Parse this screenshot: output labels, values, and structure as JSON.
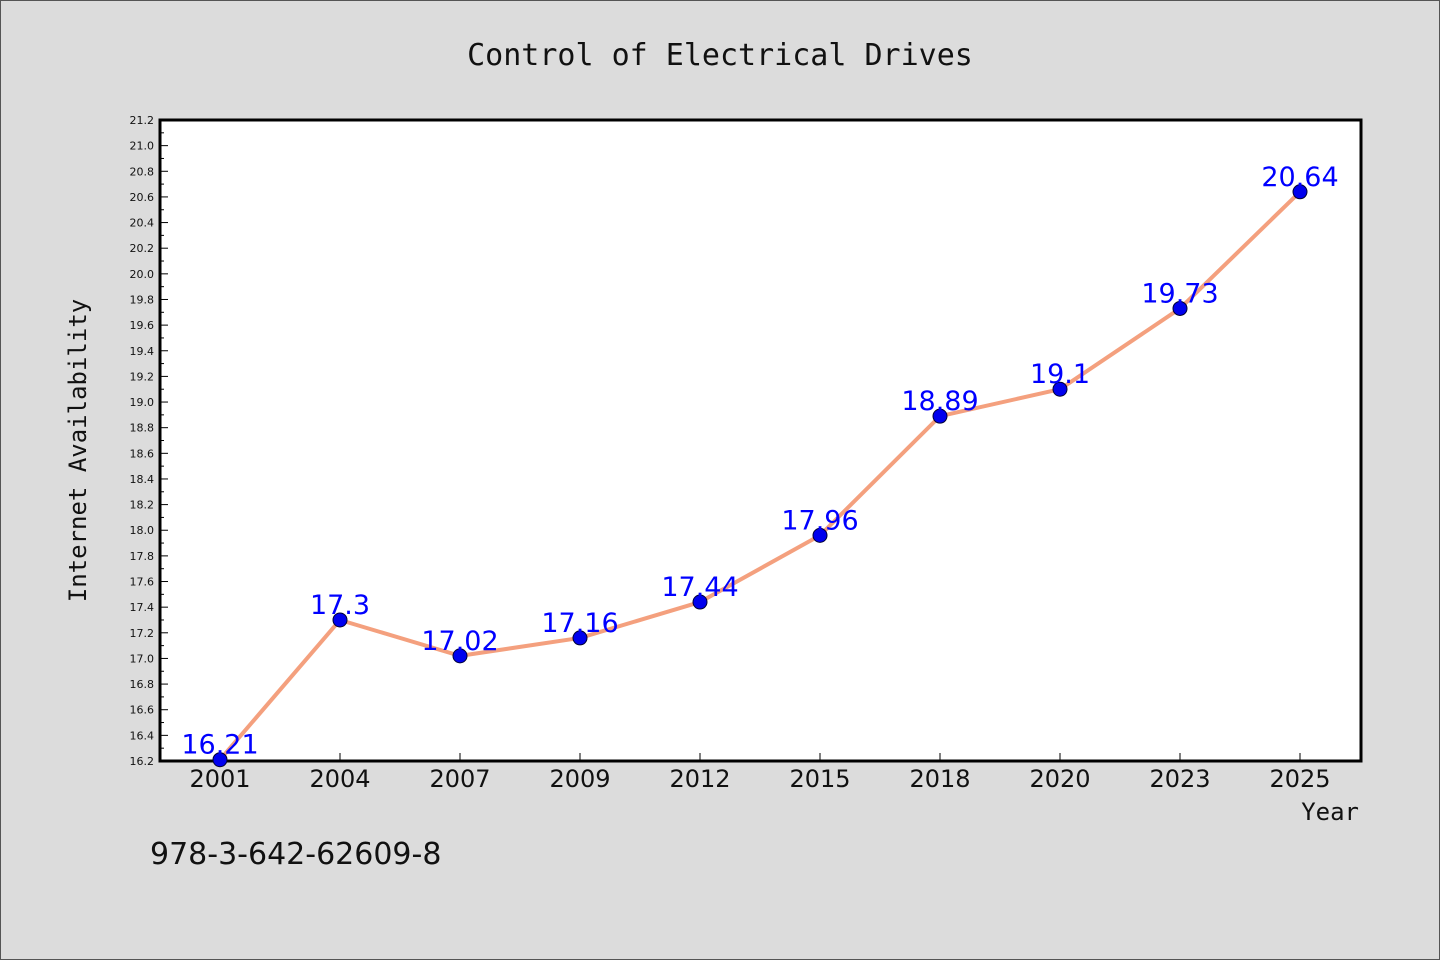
{
  "chart_data": {
    "type": "line",
    "title": "Control of Electrical Drives",
    "xlabel": "Year",
    "ylabel": "Internet Availability",
    "categories": [
      "2001",
      "2004",
      "2007",
      "2009",
      "2012",
      "2015",
      "2018",
      "2020",
      "2023",
      "2025"
    ],
    "values": [
      16.21,
      17.3,
      17.02,
      17.16,
      17.44,
      17.96,
      18.89,
      19.1,
      19.73,
      20.64
    ],
    "value_labels": [
      "16.21",
      "17.3",
      "17.02",
      "17.16",
      "17.44",
      "17.96",
      "18.89",
      "19.1",
      "19.73",
      "20.64"
    ],
    "ylim": [
      16.2,
      21.2
    ],
    "yticks": [
      "16.2",
      "16.4",
      "16.6",
      "16.8",
      "17.0",
      "17.2",
      "17.4",
      "17.6",
      "17.8",
      "18.0",
      "18.2",
      "18.4",
      "18.6",
      "18.8",
      "19.0",
      "19.2",
      "19.4",
      "19.6",
      "19.8",
      "20.0",
      "20.2",
      "20.4",
      "20.6",
      "20.8",
      "21.0",
      "21.2"
    ],
    "grid": false,
    "colors": {
      "line": "#f4a07e",
      "marker": "#0000ee",
      "label": "#0000ff",
      "background": "#dcdcdc",
      "plot_background": "#ffffff"
    }
  },
  "footer": {
    "isbn": "978-3-642-62609-8"
  }
}
